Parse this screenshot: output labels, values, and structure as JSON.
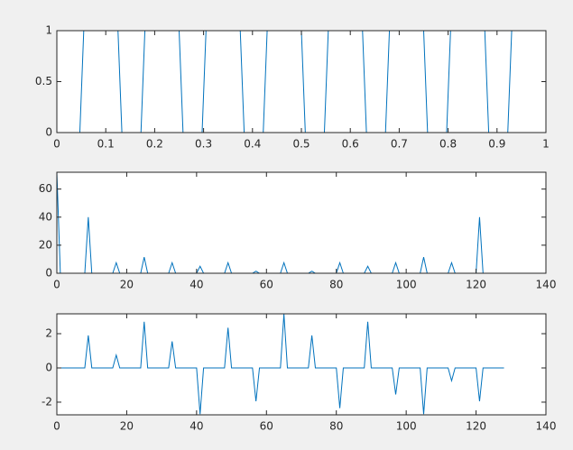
{
  "chart_data": [
    {
      "type": "line",
      "color": "#0072bd",
      "x": [
        0,
        0.047,
        0.055,
        0.125,
        0.133,
        0.172,
        0.18,
        0.25,
        0.258,
        0.297,
        0.305,
        0.375,
        0.383,
        0.422,
        0.43,
        0.5,
        0.508,
        0.547,
        0.555,
        0.625,
        0.633,
        0.672,
        0.68,
        0.75,
        0.758,
        0.797,
        0.805,
        0.875,
        0.883,
        0.922,
        0.93,
        1
      ],
      "values": [
        0,
        0,
        1,
        1,
        0,
        0,
        1,
        1,
        0,
        0,
        1,
        1,
        0,
        0,
        1,
        1,
        0,
        0,
        1,
        1,
        0,
        0,
        1,
        1,
        0,
        0,
        1,
        1,
        0,
        0,
        1,
        1
      ],
      "xlim": [
        0,
        1
      ],
      "xticks": [
        0,
        0.1,
        0.2,
        0.3,
        0.4,
        0.5,
        0.6,
        0.7,
        0.8,
        0.9,
        1
      ],
      "ylim": [
        0,
        1
      ],
      "yticks": [
        0,
        0.5,
        1
      ]
    },
    {
      "type": "line",
      "color": "#0072bd",
      "x": [
        0,
        1,
        8,
        9,
        10,
        16,
        17,
        18,
        24,
        25,
        26,
        32,
        33,
        34,
        40,
        41,
        42,
        48,
        49,
        50,
        56,
        57,
        58,
        64,
        65,
        66,
        72,
        73,
        74,
        80,
        81,
        82,
        88,
        89,
        90,
        96,
        97,
        98,
        104,
        105,
        106,
        112,
        113,
        114,
        120,
        121,
        122,
        128
      ],
      "values": [
        72,
        0,
        0,
        40,
        0,
        0,
        7.5,
        0,
        0,
        11.5,
        0,
        0,
        7.5,
        0,
        0,
        5,
        0,
        0,
        7.5,
        0,
        0,
        1.5,
        0,
        0,
        7.5,
        0,
        0,
        1.5,
        0,
        0,
        7.5,
        0,
        0,
        5,
        0,
        0,
        7.5,
        0,
        0,
        11.5,
        0,
        0,
        7.5,
        0,
        0,
        40,
        0,
        0
      ],
      "xlim": [
        0,
        140
      ],
      "xticks": [
        0,
        20,
        40,
        60,
        80,
        100,
        120,
        140
      ],
      "ylim": [
        0,
        72
      ],
      "yticks": [
        0,
        20,
        40,
        60
      ]
    },
    {
      "type": "line",
      "color": "#0072bd",
      "x": [
        1,
        8,
        9,
        10,
        16,
        17,
        18,
        24,
        25,
        26,
        32,
        33,
        34,
        40,
        41,
        42,
        48,
        49,
        50,
        56,
        57,
        58,
        64,
        65,
        66,
        72,
        73,
        74,
        80,
        81,
        82,
        88,
        89,
        90,
        96,
        97,
        98,
        104,
        105,
        106,
        112,
        113,
        114,
        120,
        121,
        122,
        128
      ],
      "values": [
        0,
        0,
        1.9,
        0,
        0,
        0.75,
        0,
        0,
        2.7,
        0,
        0,
        1.55,
        0,
        0,
        -2.7,
        0,
        0,
        2.35,
        0,
        0,
        -1.95,
        0,
        0,
        3.15,
        0,
        0,
        1.9,
        0,
        0,
        -2.35,
        0,
        0,
        2.7,
        0,
        0,
        -1.55,
        0,
        0,
        -2.7,
        0,
        0,
        -0.75,
        0,
        0,
        -1.95,
        0,
        0
      ],
      "xlim": [
        0,
        140
      ],
      "xticks": [
        0,
        20,
        40,
        60,
        80,
        100,
        120,
        140
      ],
      "ylim": [
        -2.74,
        3.16
      ],
      "yticks": [
        -2,
        0,
        2
      ]
    }
  ]
}
